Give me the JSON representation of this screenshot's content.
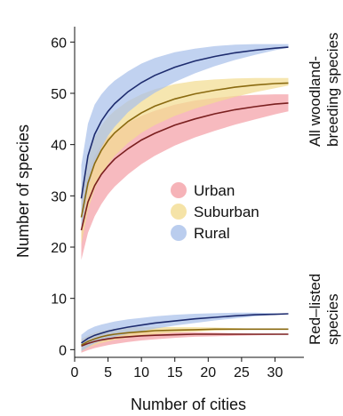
{
  "chart_data": {
    "type": "line",
    "xlabel": "Number of cities",
    "ylabel": "Number of species",
    "xlim": [
      0,
      33
    ],
    "ylim": [
      -1.5,
      63
    ],
    "xticks": [
      0,
      5,
      10,
      15,
      20,
      25,
      30
    ],
    "yticks": [
      0,
      10,
      20,
      30,
      40,
      50,
      60
    ],
    "x": [
      1,
      2,
      3,
      4,
      5,
      6,
      8,
      10,
      12,
      15,
      18,
      21,
      24,
      27,
      30,
      32
    ],
    "legend": {
      "position": "center-right",
      "entries": [
        "Urban",
        "Suburban",
        "Rural"
      ]
    },
    "groups": [
      {
        "label": "All woodland-breeding species",
        "series": [
          {
            "name": "Urban",
            "color": "#7a1f1f",
            "band_color": "#f4a0a6",
            "values": [
              23.3,
              28.8,
              32.0,
              34.2,
              35.8,
              37.2,
              39.2,
              40.9,
              42.2,
              43.8,
              45.0,
              46.0,
              46.8,
              47.4,
              47.9,
              48.1
            ],
            "lower": [
              17.5,
              22.8,
              26.0,
              28.4,
              30.3,
              31.8,
              34.2,
              36.2,
              37.8,
              39.8,
              41.4,
              42.7,
              43.9,
              44.9,
              45.9,
              46.5
            ],
            "upper": [
              29.3,
              34.6,
              37.8,
              40.0,
              41.5,
              42.6,
              44.3,
              45.6,
              46.6,
              47.8,
              48.6,
              49.1,
              49.5,
              49.7,
              49.8,
              49.8
            ]
          },
          {
            "name": "Suburban",
            "color": "#8a6a10",
            "band_color": "#f3dc91",
            "values": [
              25.8,
              32.5,
              36.3,
              38.9,
              40.8,
              42.3,
              44.5,
              46.2,
              47.5,
              48.9,
              49.9,
              50.6,
              51.2,
              51.6,
              51.9,
              52.0
            ],
            "lower": [
              20.5,
              27.2,
              31.3,
              34.1,
              36.2,
              37.8,
              40.3,
              42.3,
              43.8,
              45.6,
              47.0,
              48.2,
              49.3,
              50.2,
              51.0,
              51.5
            ],
            "upper": [
              31.2,
              37.8,
              41.3,
              43.7,
              45.4,
              46.6,
              48.5,
              49.8,
              50.8,
              51.8,
              52.4,
              52.7,
              52.9,
              53.0,
              53.0,
              53.0
            ]
          },
          {
            "name": "Rural",
            "color": "#1d2b6e",
            "band_color": "#a9c0ea",
            "values": [
              29.5,
              37.8,
              42.0,
              44.6,
              46.5,
              48.0,
              50.3,
              52.1,
              53.5,
              55.1,
              56.3,
              57.2,
              57.9,
              58.4,
              58.8,
              59.0
            ],
            "lower": [
              23.0,
              31.5,
              36.2,
              39.4,
              41.7,
              43.5,
              46.3,
              48.4,
              50.1,
              52.2,
              53.9,
              55.3,
              56.5,
              57.5,
              58.4,
              58.9
            ],
            "upper": [
              36.0,
              44.1,
              47.8,
              49.8,
              51.3,
              52.5,
              54.3,
              55.8,
              56.9,
              58.0,
              58.7,
              59.2,
              59.5,
              59.6,
              59.6,
              59.6
            ]
          }
        ]
      },
      {
        "label": "Red-listed species",
        "series": [
          {
            "name": "Urban",
            "color": "#7a1f1f",
            "band_color": "#f4a0a6",
            "values": [
              0.7,
              1.2,
              1.6,
              1.9,
              2.1,
              2.3,
              2.5,
              2.7,
              2.8,
              2.9,
              3.0,
              3.0,
              3.0,
              3.0,
              3.0,
              3.0
            ],
            "lower": [
              -0.6,
              -0.1,
              0.3,
              0.6,
              0.9,
              1.1,
              1.5,
              1.8,
              2.0,
              2.3,
              2.5,
              2.6,
              2.7,
              2.8,
              2.9,
              3.0
            ],
            "upper": [
              2.0,
              2.5,
              2.9,
              3.2,
              3.3,
              3.4,
              3.5,
              3.5,
              3.5,
              3.4,
              3.4,
              3.3,
              3.2,
              3.1,
              3.1,
              3.0
            ]
          },
          {
            "name": "Suburban",
            "color": "#8a6a10",
            "band_color": "#f3dc91",
            "values": [
              0.9,
              1.6,
              2.1,
              2.5,
              2.8,
              3.0,
              3.3,
              3.5,
              3.7,
              3.8,
              3.9,
              4.0,
              4.0,
              4.0,
              4.0,
              4.0
            ],
            "lower": [
              -0.3,
              0.4,
              0.9,
              1.3,
              1.6,
              1.9,
              2.3,
              2.7,
              3.0,
              3.3,
              3.5,
              3.7,
              3.8,
              3.9,
              4.0,
              4.0
            ],
            "upper": [
              2.1,
              2.8,
              3.3,
              3.7,
              3.9,
              4.1,
              4.3,
              4.4,
              4.4,
              4.4,
              4.4,
              4.3,
              4.2,
              4.1,
              4.1,
              4.0
            ]
          },
          {
            "name": "Rural",
            "color": "#1d2b6e",
            "band_color": "#a9c0ea",
            "values": [
              1.3,
              2.2,
              2.8,
              3.2,
              3.6,
              3.9,
              4.4,
              4.8,
              5.2,
              5.6,
              6.0,
              6.3,
              6.6,
              6.8,
              6.9,
              7.0
            ],
            "lower": [
              -0.3,
              0.5,
              1.2,
              1.7,
              2.1,
              2.5,
              3.1,
              3.6,
              4.1,
              4.7,
              5.2,
              5.7,
              6.1,
              6.5,
              6.8,
              7.0
            ],
            "upper": [
              2.9,
              3.9,
              4.5,
              4.9,
              5.2,
              5.5,
              5.9,
              6.2,
              6.5,
              6.8,
              7.0,
              7.1,
              7.2,
              7.2,
              7.1,
              7.0
            ]
          }
        ]
      }
    ]
  },
  "labels": {
    "group1_line1": "All woodland-",
    "group1_line2": "breeding species",
    "group2_line1": "Red–listed",
    "group2_line2": "species"
  }
}
